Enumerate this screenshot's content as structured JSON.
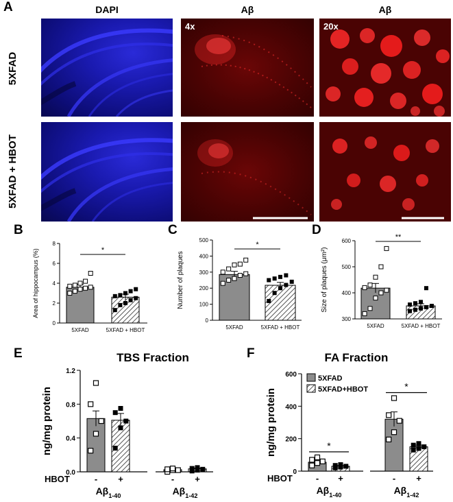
{
  "panel_letters": {
    "A": "A",
    "B": "B",
    "C": "C",
    "D": "D",
    "E": "E",
    "F": "F"
  },
  "image_grid": {
    "column_titles": [
      "DAPI",
      "Aβ",
      "Aβ"
    ],
    "row_labels": [
      "5XFAD",
      "5XFAD + HBOT"
    ],
    "magnifications": [
      "4x",
      "20x"
    ],
    "colors": {
      "dapi": "#1a1ab0",
      "amyloid": "#ff2a2a"
    }
  },
  "colors": {
    "bar_fill": "#8c8c8c",
    "edge": "#000000",
    "open_marker": "#ffffff",
    "filled_marker": "#000000"
  },
  "chart_data": [
    {
      "id": "B",
      "type": "bar",
      "ylabel": "Area of hippocampus (%)",
      "categories": [
        "5XFAD",
        "5XFAD + HBOT"
      ],
      "values": [
        3.6,
        2.6
      ],
      "errors": [
        0.3,
        0.3
      ],
      "fills": [
        "solid",
        "hatched"
      ],
      "ylim": [
        0,
        8
      ],
      "yticks": [
        "0",
        "2",
        "4",
        "6",
        "8"
      ],
      "points": [
        [
          3.0,
          3.2,
          3.4,
          3.5,
          3.6,
          3.7,
          3.8,
          4.0,
          4.2,
          5.0
        ],
        [
          1.3,
          1.8,
          2.0,
          2.3,
          2.5,
          2.7,
          2.8,
          3.0,
          3.2,
          3.4
        ]
      ],
      "significance": "*"
    },
    {
      "id": "C",
      "type": "bar",
      "ylabel": "Number of plaques",
      "categories": [
        "5XFAD",
        "5XFAD + HBOT"
      ],
      "values": [
        285,
        218
      ],
      "errors": [
        20,
        18
      ],
      "fills": [
        "solid",
        "hatched"
      ],
      "ylim": [
        0,
        500
      ],
      "yticks": [
        "0",
        "100",
        "200",
        "300",
        "400",
        "500"
      ],
      "points": [
        [
          230,
          250,
          260,
          280,
          290,
          300,
          320,
          345,
          350,
          375
        ],
        [
          120,
          170,
          200,
          220,
          240,
          250,
          260,
          270,
          280
        ]
      ],
      "significance": "*"
    },
    {
      "id": "D",
      "type": "bar",
      "ylabel": "Size of plaques (μm²)",
      "categories": [
        "5XFAD",
        "5XFAD + HBOT"
      ],
      "values": [
        418,
        350
      ],
      "errors": [
        18,
        8
      ],
      "fills": [
        "solid",
        "hatched"
      ],
      "ylim": [
        300,
        600
      ],
      "yticks": [
        "300",
        "400",
        "500",
        "600"
      ],
      "points": [
        [
          320,
          340,
          380,
          400,
          410,
          420,
          430,
          460,
          500,
          570
        ],
        [
          330,
          335,
          340,
          345,
          350,
          355,
          360,
          365,
          418
        ]
      ],
      "significance": "**"
    },
    {
      "id": "E",
      "type": "bar",
      "title": "TBS Fraction",
      "ylabel": "ng/mg protein",
      "groups": [
        "Aβ1-40",
        "Aβ1-42"
      ],
      "hbot_row_label": "HBOT",
      "hbot_ticks": [
        "-",
        "+"
      ],
      "values": [
        [
          0.63,
          0.61
        ],
        [
          0.025,
          0.035
        ]
      ],
      "errors": [
        [
          0.09,
          0.08
        ],
        [
          0.008,
          0.01
        ]
      ],
      "ylim": [
        0,
        1.2
      ],
      "yticks": [
        "0.0",
        "0.4",
        "0.8",
        "1.2"
      ],
      "points": [
        [
          [
            0.25,
            0.45,
            0.6,
            0.8,
            1.05
          ],
          [
            0.28,
            0.52,
            0.6,
            0.7,
            0.75
          ]
        ],
        [
          [
            0.0,
            0.02,
            0.02,
            0.03,
            0.04
          ],
          [
            0.01,
            0.02,
            0.03,
            0.04,
            0.05
          ]
        ]
      ]
    },
    {
      "id": "F",
      "type": "bar",
      "title": "FA Fraction",
      "ylabel": "ng/mg protein",
      "groups": [
        "Aβ1-40",
        "Aβ1-42"
      ],
      "hbot_row_label": "HBOT",
      "hbot_ticks": [
        "-",
        "+"
      ],
      "legend": [
        "5XFAD",
        "5XFAD+HBOT"
      ],
      "values": [
        [
          55,
          30
        ],
        [
          320,
          150
        ]
      ],
      "errors": [
        [
          8,
          5
        ],
        [
          45,
          10
        ]
      ],
      "ylim": [
        0,
        600
      ],
      "yticks": [
        "0",
        "200",
        "400",
        "600"
      ],
      "points": [
        [
          [
            35,
            50,
            60,
            70,
            85
          ],
          [
            20,
            25,
            30,
            35,
            40
          ]
        ],
        [
          [
            195,
            240,
            310,
            345,
            450
          ],
          [
            130,
            140,
            150,
            160,
            170
          ]
        ]
      ],
      "significance": [
        "*",
        "*"
      ]
    }
  ]
}
